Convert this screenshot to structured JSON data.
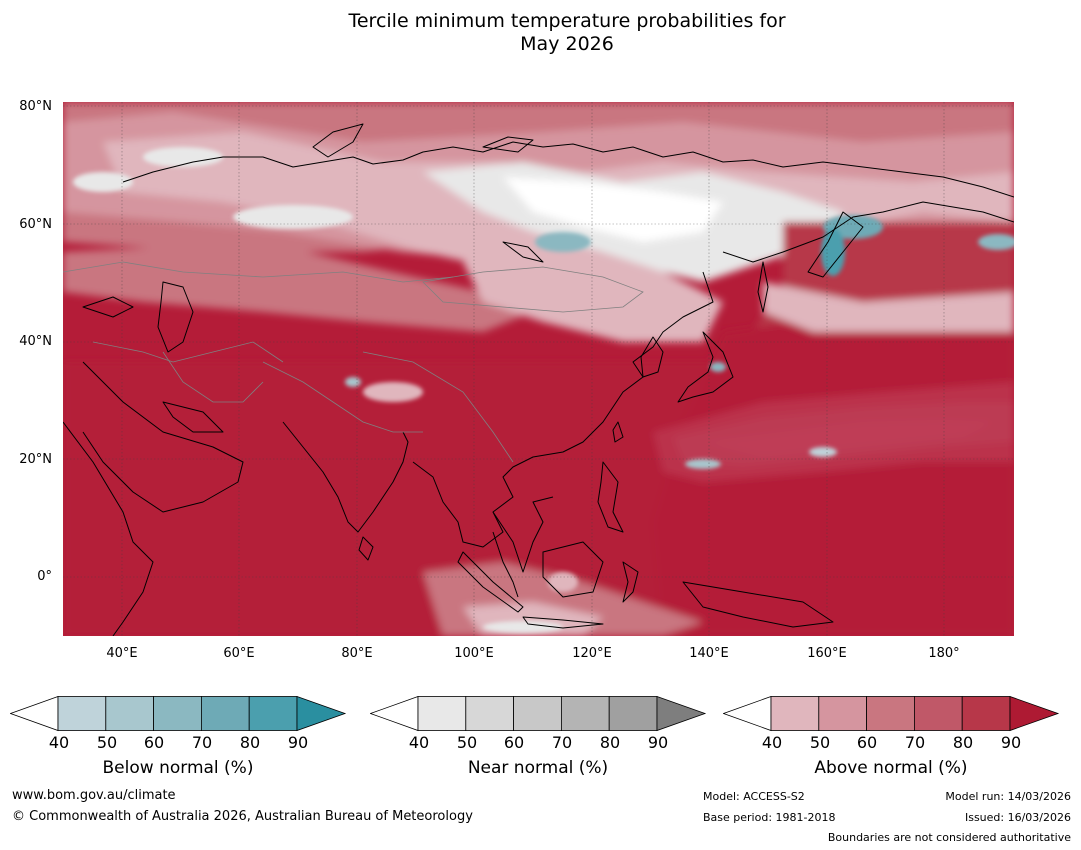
{
  "title": {
    "line1": "Tercile minimum temperature probabilities for",
    "line2": "May 2026"
  },
  "map": {
    "region": "Asia and western Pacific",
    "lat_labels": [
      "80°N",
      "60°N",
      "40°N",
      "20°N",
      "0°"
    ],
    "lon_labels": [
      "40°E",
      "60°E",
      "80°E",
      "100°E",
      "120°E",
      "140°E",
      "160°E",
      "180°"
    ],
    "dominant_category": "Above normal",
    "colors": {
      "above_90": "#b41c38",
      "coastline": "#000000",
      "borders": "#808080",
      "gridlines": "#404040"
    }
  },
  "colorbars": [
    {
      "id": "below",
      "label": "Below normal (%)",
      "ticks": [
        "40",
        "50",
        "60",
        "70",
        "80",
        "90"
      ],
      "colors": [
        "#ffffff",
        "#bfd3da",
        "#a8c7ce",
        "#8bb8c1",
        "#6eaab6",
        "#4b9fae",
        "#2a8fa0"
      ]
    },
    {
      "id": "near",
      "label": "Near normal (%)",
      "ticks": [
        "40",
        "50",
        "60",
        "70",
        "80",
        "90"
      ],
      "colors": [
        "#ffffff",
        "#e8e8e8",
        "#d7d7d7",
        "#c8c8c8",
        "#b4b4b4",
        "#a0a0a0",
        "#7e7e7e"
      ]
    },
    {
      "id": "above",
      "label": "Above normal (%)",
      "ticks": [
        "40",
        "50",
        "60",
        "70",
        "80",
        "90"
      ],
      "colors": [
        "#ffffff",
        "#e0b6bd",
        "#d5959f",
        "#c97680",
        "#c05868",
        "#b73749",
        "#ae1a33"
      ]
    }
  ],
  "footer": {
    "website": "www.bom.gov.au/climate",
    "copyright": "© Commonwealth of Australia 2026, Australian Bureau of Meteorology",
    "model": "Model: ACCESS-S2",
    "base_period": "Base period: 1981-2018",
    "model_run": "Model run: 14/03/2026",
    "issued": "Issued: 16/03/2026",
    "disclaimer": "Boundaries are not considered authoritative"
  }
}
